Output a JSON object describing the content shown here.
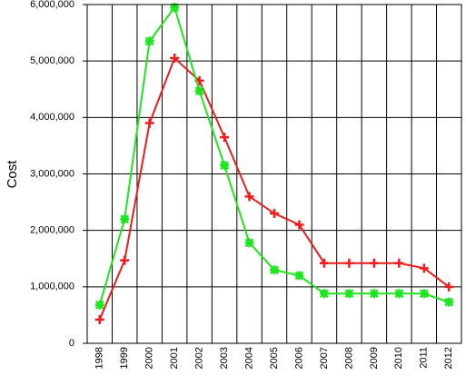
{
  "chart_data": {
    "type": "line",
    "y_label": "Cost",
    "categories": [
      "1998",
      "1999",
      "2000",
      "2001",
      "2002",
      "2003",
      "2004",
      "2005",
      "2006",
      "2007",
      "2008",
      "2009",
      "2010",
      "2011",
      "2012"
    ],
    "series": [
      {
        "color": "#ee1c1c",
        "values": [
          420000,
          1470000,
          3900000,
          5050000,
          4650000,
          3650000,
          2600000,
          2300000,
          2100000,
          1420000,
          1420000,
          1420000,
          1420000,
          1330000,
          1000000
        ]
      },
      {
        "color": "#1ee61e",
        "values": [
          680000,
          2200000,
          5350000,
          5950000,
          4470000,
          3150000,
          1780000,
          1300000,
          1200000,
          880000,
          880000,
          880000,
          880000,
          880000,
          730000
        ]
      }
    ],
    "ylim": [
      0,
      6000000
    ],
    "yticks": [
      0,
      {
        "value": 1000000,
        "label": "1,000,000"
      },
      {
        "value": 2000000,
        "label": "2,000,000"
      },
      {
        "value": 3000000,
        "label": "3,000,000"
      },
      {
        "value": 4000000,
        "label": "4,000,000"
      },
      {
        "value": 5000000,
        "label": "5,000,000"
      },
      {
        "value": 6000000,
        "label": "6,000,000"
      }
    ],
    "grid": true
  }
}
